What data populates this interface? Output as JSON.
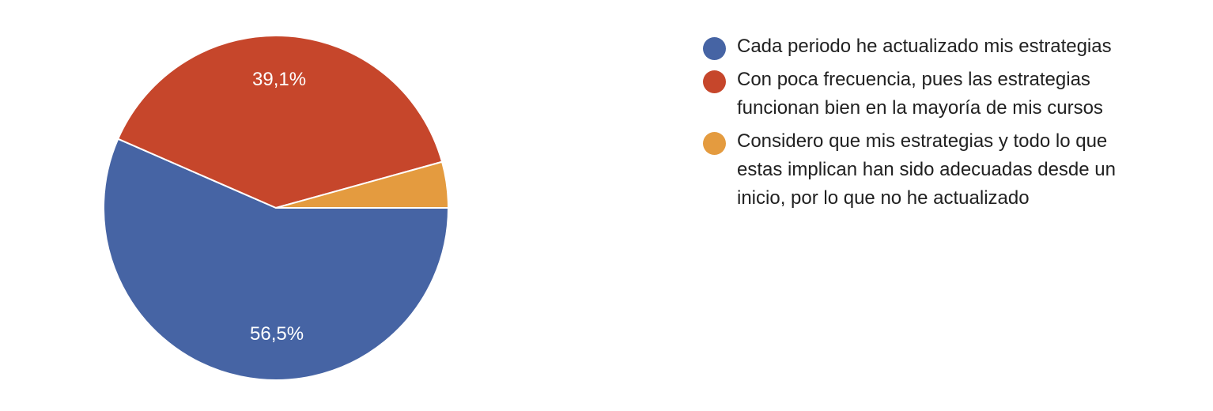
{
  "chart_data": {
    "type": "pie",
    "title": "",
    "categories": [
      "Cada periodo he actualizado mis estrategias",
      "Con poca frecuencia, pues las estrategias funcionan bien en la mayoría de mis cursos",
      "Considero que mis estrategias y todo lo que estas implican han sido adecuadas desde un inicio, por lo que no he actualizado"
    ],
    "values": [
      56.5,
      39.1,
      4.3
    ],
    "colors": [
      "#4664a4",
      "#c6462b",
      "#e49b3f"
    ],
    "data_labels": [
      "56,5%",
      "39,1%",
      ""
    ],
    "legend_position": "right",
    "start_angle": "3 o'clock, clockwise"
  },
  "labels": {
    "slice0": "56,5%",
    "slice1": "39,1%"
  },
  "legend": {
    "items": [
      {
        "label": "Cada periodo he actualizado mis estrategias",
        "color": "#4664a4"
      },
      {
        "label": "Con poca frecuencia, pues las estrategias funcionan bien en la mayoría de mis cursos",
        "color": "#c6462b"
      },
      {
        "label": "Considero que mis estrategias y todo lo que estas implican han sido adecuadas desde un inicio, por lo que no he actualizado",
        "color": "#e49b3f"
      }
    ]
  }
}
